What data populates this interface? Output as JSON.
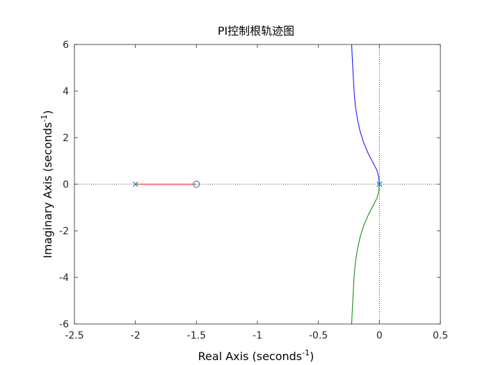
{
  "chart_data": {
    "type": "line",
    "title": "PI控制根轨迹图",
    "xlabel": "Real Axis (seconds",
    "ylabel": "Imaginary Axis (seconds",
    "label_exponent": "-1",
    "label_close": ")",
    "xlim": [
      -2.5,
      0.5
    ],
    "ylim": [
      -6,
      6
    ],
    "xticks": [
      -2.5,
      -2,
      -1.5,
      -1,
      -0.5,
      0,
      0.5
    ],
    "yticks": [
      -6,
      -4,
      -2,
      0,
      2,
      4,
      6
    ],
    "xtick_labels": [
      "-2.5",
      "-2",
      "-1.5",
      "-1",
      "-0.5",
      "0",
      "0.5"
    ],
    "ytick_labels": [
      "-6",
      "-4",
      "-2",
      "0",
      "2",
      "4",
      "6"
    ],
    "grid": false,
    "reference_lines": {
      "y0": "dotted",
      "x0": "dotted"
    },
    "poles": [
      [
        -2,
        0
      ],
      [
        0,
        0
      ],
      [
        0,
        0
      ]
    ],
    "zeros": [
      [
        -1.5,
        0
      ]
    ],
    "series": [
      {
        "color": "#0000ff",
        "x": [
          0,
          -0.005,
          -0.02,
          -0.05,
          -0.09,
          -0.13,
          -0.16,
          -0.18,
          -0.195,
          -0.205,
          -0.212,
          -0.218,
          -0.223,
          -0.227
        ],
        "y": [
          0,
          0.3,
          0.6,
          0.9,
          1.3,
          1.8,
          2.3,
          2.8,
          3.3,
          3.8,
          4.4,
          5.0,
          5.5,
          6.0
        ]
      },
      {
        "color": "#007f00",
        "x": [
          0,
          -0.005,
          -0.02,
          -0.05,
          -0.09,
          -0.13,
          -0.16,
          -0.18,
          -0.195,
          -0.205,
          -0.212,
          -0.218,
          -0.223,
          -0.227
        ],
        "y": [
          0,
          -0.3,
          -0.6,
          -0.9,
          -1.3,
          -1.8,
          -2.3,
          -2.8,
          -3.3,
          -3.8,
          -4.4,
          -5.0,
          -5.5,
          -6.0
        ]
      },
      {
        "color": "#ff0000",
        "x": [
          -2,
          -1.5
        ],
        "y": [
          0,
          0
        ]
      }
    ],
    "marker_color": "#0072bd",
    "axis_color": "#262626"
  }
}
